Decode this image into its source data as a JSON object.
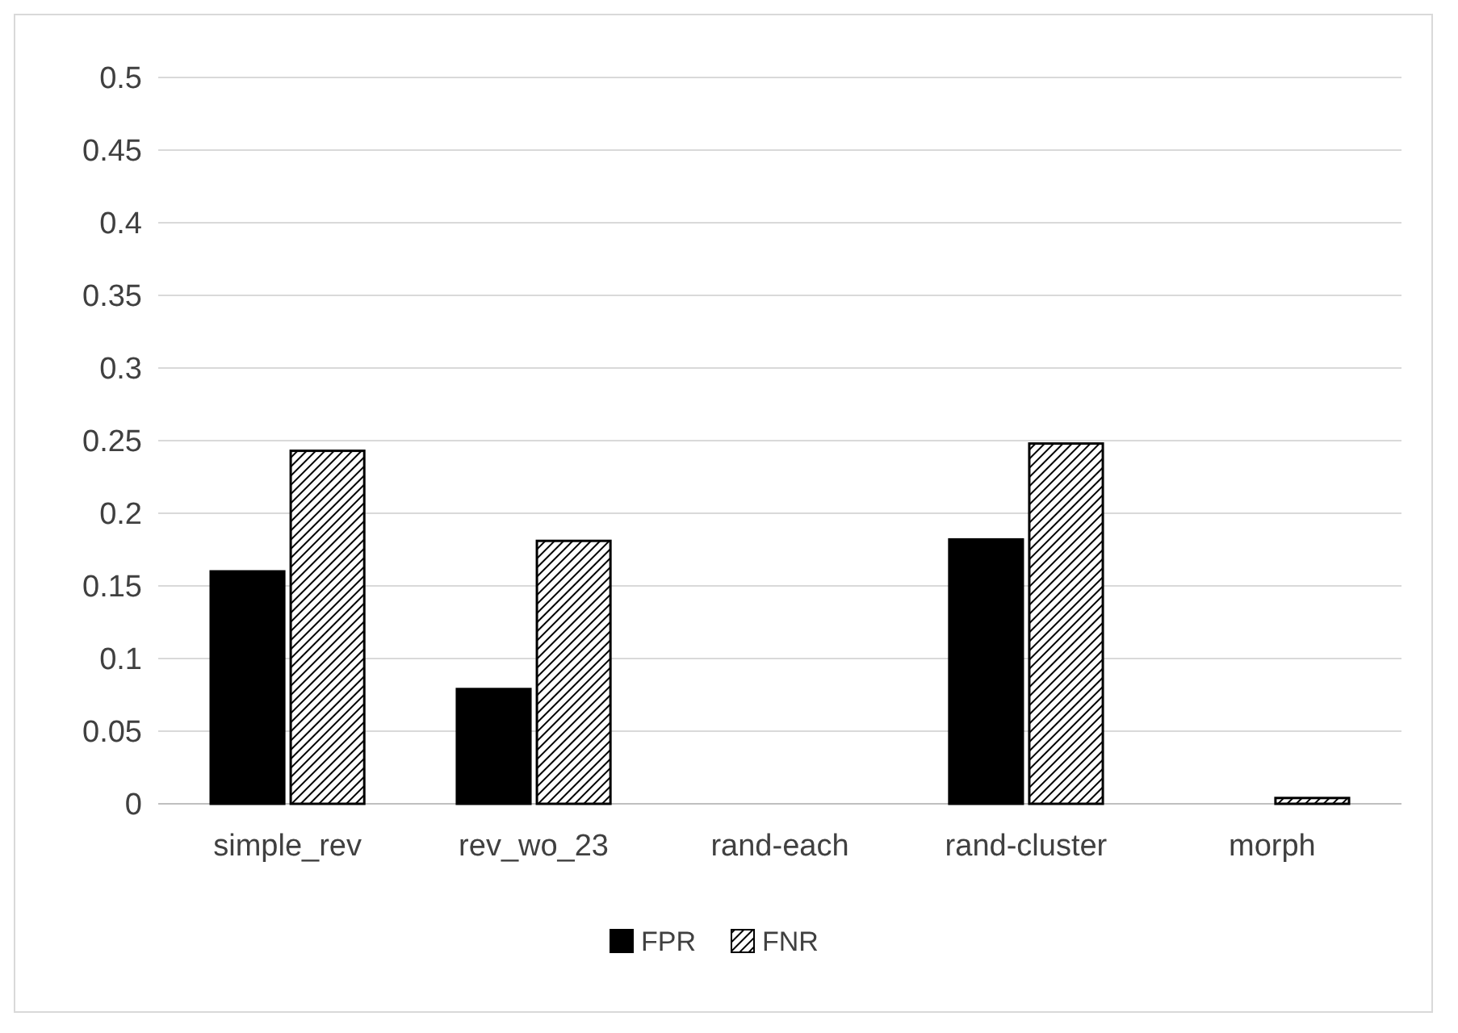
{
  "chart_data": {
    "type": "bar",
    "categories": [
      "simple_rev",
      "rev_wo_23",
      "rand-each",
      "rand-cluster",
      "morph"
    ],
    "series": [
      {
        "name": "FPR",
        "color": "#000000",
        "values": [
          0.16,
          0.079,
          0,
          0.182,
          0
        ]
      },
      {
        "name": "FNR",
        "color": "#000000",
        "values": [
          0.243,
          0.181,
          0,
          0.248,
          0.004
        ]
      }
    ],
    "ylim": [
      0,
      0.5
    ],
    "yticks": [
      0,
      0.05,
      0.1,
      0.15,
      0.2,
      0.25,
      0.3,
      0.35,
      0.4,
      0.45,
      0.5
    ],
    "grid": "y",
    "legend": "bottom"
  }
}
